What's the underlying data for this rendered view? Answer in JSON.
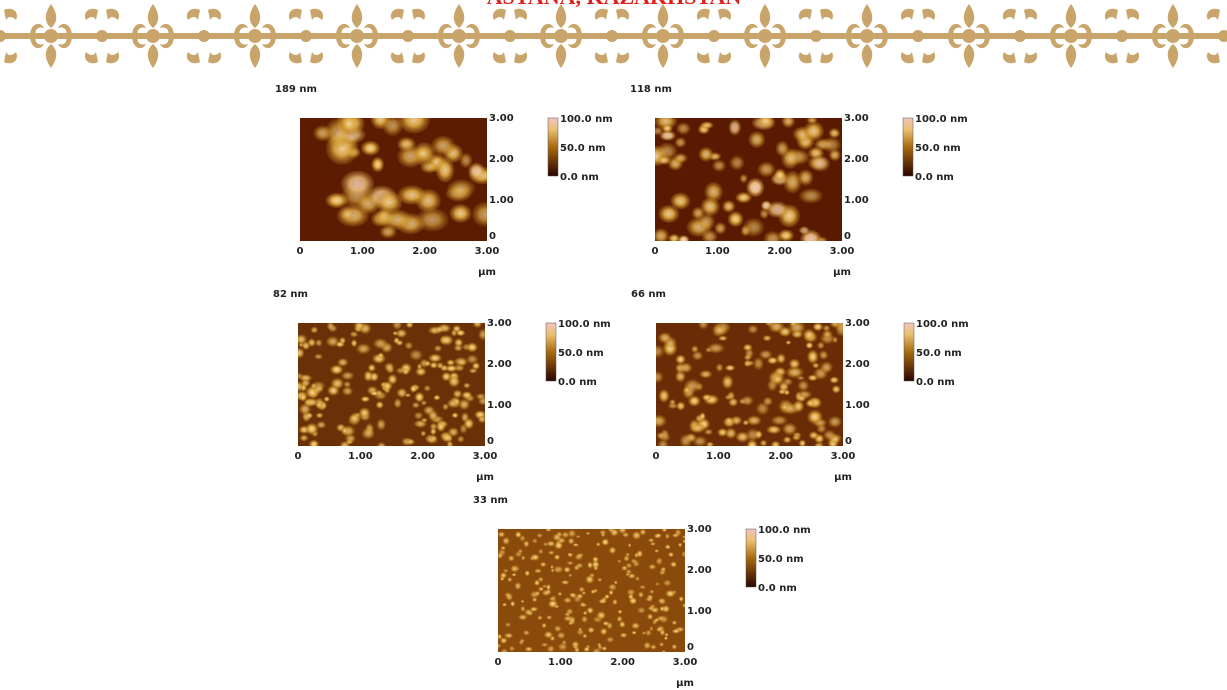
{
  "header": {
    "title": "ASTANA, KAZAKHSTAN"
  },
  "panels": [
    {
      "label": "189 nm",
      "x_ticks": [
        "0",
        "1.00",
        "2.00",
        "3.00"
      ],
      "y_ticks": [
        "0",
        "1.00",
        "2.00",
        "3.00"
      ],
      "unit": "µm",
      "colorbar": [
        "100.0 nm",
        "50.0 nm",
        "0.0 nm"
      ]
    },
    {
      "label": "118 nm",
      "x_ticks": [
        "0",
        "1.00",
        "2.00",
        "3.00"
      ],
      "y_ticks": [
        "0",
        "1.00",
        "2.00",
        "3.00"
      ],
      "unit": "µm",
      "colorbar": [
        "100.0 nm",
        "50.0 nm",
        "0.0 nm"
      ]
    },
    {
      "label": "82 nm",
      "x_ticks": [
        "0",
        "1.00",
        "2.00",
        "3.00"
      ],
      "y_ticks": [
        "0",
        "1.00",
        "2.00",
        "3.00"
      ],
      "unit": "µm",
      "colorbar": [
        "100.0 nm",
        "50.0 nm",
        "0.0 nm"
      ]
    },
    {
      "label": "66 nm",
      "x_ticks": [
        "0",
        "1.00",
        "2.00",
        "3.00"
      ],
      "y_ticks": [
        "0",
        "1.00",
        "2.00",
        "3.00"
      ],
      "unit": "µm",
      "colorbar": [
        "100.0 nm",
        "50.0 nm",
        "0.0 nm"
      ]
    },
    {
      "label": "33 nm",
      "x_ticks": [
        "0",
        "1.00",
        "2.00",
        "3.00"
      ],
      "y_ticks": [
        "0",
        "1.00",
        "2.00",
        "3.00"
      ],
      "unit": "µm",
      "colorbar": [
        "100.0 nm",
        "50.0 nm",
        "0.0 nm"
      ]
    }
  ]
}
